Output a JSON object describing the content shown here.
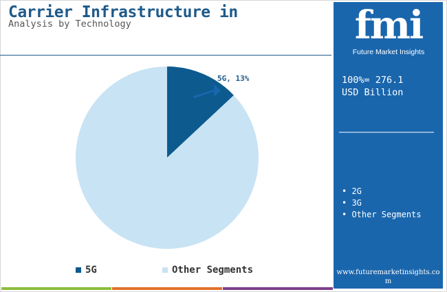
{
  "title": "Carrier Infrastructure in",
  "subtitle": "Analysis by Technology",
  "chart_data": {
    "type": "pie",
    "title": "Carrier Infrastructure in",
    "subtitle": "Analysis by Technology",
    "slices": [
      {
        "label": "5G",
        "value": 13,
        "color": "#0d5a8f",
        "data_label": "5G, 13%"
      },
      {
        "label": "Other Segments",
        "value": 87,
        "color": "#c8e3f4"
      }
    ],
    "legend": [
      "5G",
      "Other Segments"
    ],
    "legend_position": "bottom"
  },
  "sidebar": {
    "logo": "fmi",
    "logo_subtitle": "Future Market Insights",
    "total_line1": "100%= 276.1",
    "total_line2": "USD Billion",
    "segments": [
      "• 2G",
      "• 3G",
      "• Other Segments"
    ],
    "website": "www.futuremarketinsights.com",
    "background_color": "#1a66ad"
  },
  "bottom_bar_colors": [
    "#8cbd3f",
    "#e0712c",
    "#7e3f8f"
  ]
}
